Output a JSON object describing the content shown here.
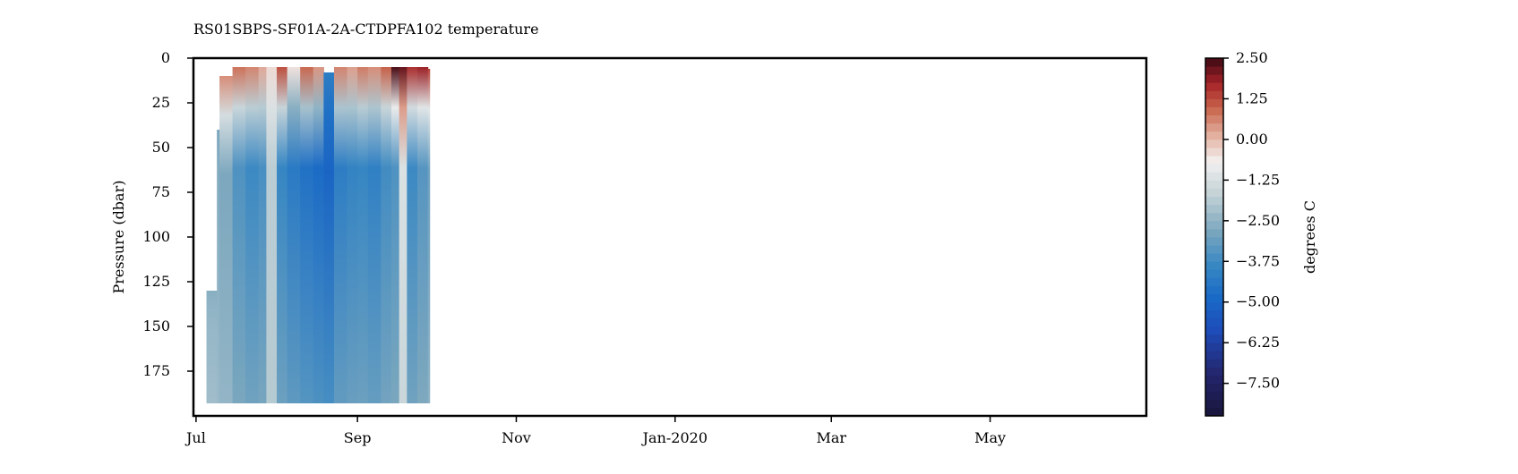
{
  "chart_data": {
    "type": "heatmap",
    "title": "RS01SBPS-SF01A-2A-CTDPFA102 temperature",
    "xlabel": "",
    "ylabel": "Pressure (dbar)",
    "colorbar_label": "degrees C",
    "x_range": [
      "2019-06-30",
      "2020-06-30"
    ],
    "x_ticks": [
      {
        "date": "2019-07-01",
        "label": "Jul"
      },
      {
        "date": "2019-09-01",
        "label": "Sep"
      },
      {
        "date": "2019-11-01",
        "label": "Nov"
      },
      {
        "date": "2020-01-01",
        "label": "Jan-2020"
      },
      {
        "date": "2020-03-01",
        "label": "Mar"
      },
      {
        "date": "2020-05-01",
        "label": "May"
      }
    ],
    "y_range": [
      200,
      0
    ],
    "y_ticks": [
      0,
      25,
      50,
      75,
      100,
      125,
      150,
      175
    ],
    "colorbar_range": [
      -8.5,
      2.5
    ],
    "colorbar_ticks": [
      {
        "value": 2.5,
        "label": "2.50"
      },
      {
        "value": 1.25,
        "label": "1.25"
      },
      {
        "value": 0.0,
        "label": "0.00"
      },
      {
        "value": -1.25,
        "label": "−1.25"
      },
      {
        "value": -2.5,
        "label": "−2.50"
      },
      {
        "value": -3.75,
        "label": "−3.75"
      },
      {
        "value": -5.0,
        "label": "−5.00"
      },
      {
        "value": -6.25,
        "label": "−6.25"
      },
      {
        "value": -7.5,
        "label": "−7.50"
      }
    ],
    "colormap": "balance",
    "data_extent": {
      "start": "2019-07-01",
      "end": "2019-09-28",
      "pressure_min": 5,
      "pressure_max": 193
    },
    "profiles": [
      {
        "date": "2019-07-01",
        "top": 193,
        "surface": -2.4,
        "deep": -2.2
      },
      {
        "date": "2019-07-05",
        "top": 130,
        "surface": -2.6,
        "deep": -2.4
      },
      {
        "date": "2019-07-09",
        "top": 40,
        "surface": -2.8,
        "deep": -2.6
      },
      {
        "date": "2019-07-10",
        "top": 10,
        "surface": 0.5,
        "deep": -2.8
      },
      {
        "date": "2019-07-15",
        "top": 5,
        "surface": 0.8,
        "deep": -3.5
      },
      {
        "date": "2019-07-20",
        "top": 5,
        "surface": 0.6,
        "deep": -3.8
      },
      {
        "date": "2019-07-25",
        "top": 5,
        "surface": 0.2,
        "deep": -3.6
      },
      {
        "date": "2019-07-28",
        "top": 5,
        "surface": -0.4,
        "deep": -1.8
      },
      {
        "date": "2019-08-01",
        "top": 5,
        "surface": 1.2,
        "deep": -3.9
      },
      {
        "date": "2019-08-05",
        "top": 5,
        "surface": -0.5,
        "deep": -4.3
      },
      {
        "date": "2019-08-10",
        "top": 5,
        "surface": 0.9,
        "deep": -4.6
      },
      {
        "date": "2019-08-15",
        "top": 5,
        "surface": 0.4,
        "deep": -4.8
      },
      {
        "date": "2019-08-19",
        "top": 8,
        "surface": -4.2,
        "deep": -5.0
      },
      {
        "date": "2019-08-23",
        "top": 5,
        "surface": 0.6,
        "deep": -4.2
      },
      {
        "date": "2019-08-28",
        "top": 5,
        "surface": 0.3,
        "deep": -4.0
      },
      {
        "date": "2019-09-01",
        "top": 5,
        "surface": 0.7,
        "deep": -3.9
      },
      {
        "date": "2019-09-05",
        "top": 5,
        "surface": 0.5,
        "deep": -4.1
      },
      {
        "date": "2019-09-10",
        "top": 5,
        "surface": 1.0,
        "deep": -3.7
      },
      {
        "date": "2019-09-14",
        "top": 5,
        "surface": 2.4,
        "deep": -3.5
      },
      {
        "date": "2019-09-17",
        "top": 5,
        "surface": 2.2,
        "deep": -1.2
      },
      {
        "date": "2019-09-20",
        "top": 5,
        "surface": 1.6,
        "deep": -3.8
      },
      {
        "date": "2019-09-24",
        "top": 5,
        "surface": 1.8,
        "deep": -3.4
      },
      {
        "date": "2019-09-28",
        "top": 6,
        "surface": 1.4,
        "deep": -3.0
      }
    ]
  }
}
